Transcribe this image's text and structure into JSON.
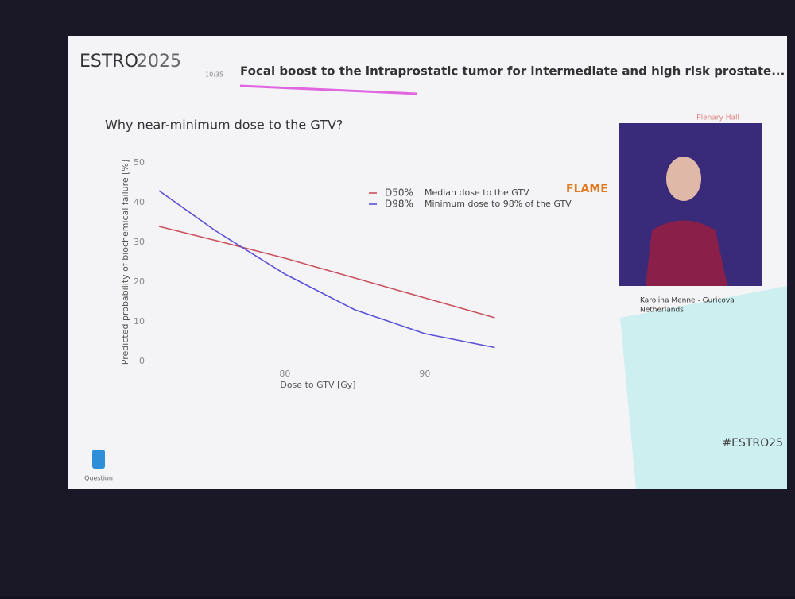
{
  "slide": {
    "logo": "ESTRO",
    "logo_year": "2025",
    "time": "10:35",
    "title": "Focal boost to the intraprostatic tumor for intermediate and high risk prostate...",
    "room": "Plenary Hall",
    "heading": "Why near-minimum dose to the GTV?",
    "study_logo": "FLAME",
    "speaker": "Karolina Menne - Guricova",
    "country": "Netherlands",
    "hashtag": "#ESTRO25",
    "question": "Question"
  },
  "chart_data": {
    "type": "line",
    "x_label": "Dose to GTV [Gy]",
    "y_label": "Predicted probability of biochemical failure [%]",
    "x": [
      71,
      75,
      80,
      85,
      90,
      95
    ],
    "series": [
      {
        "name": "D50%",
        "description": "Median dose to the GTV",
        "color": "#c9505c",
        "values": [
          34,
          30.5,
          26,
          21,
          16,
          11
        ]
      },
      {
        "name": "D98%",
        "description": "Minimum dose to 98% of the GTV",
        "color": "#5b4fd6",
        "values": [
          43,
          33,
          22,
          13,
          7,
          3.5
        ]
      }
    ],
    "xlim": [
      71,
      96
    ],
    "xticks": [
      80,
      90
    ],
    "ylim": [
      0,
      50
    ],
    "yticks": [
      0,
      10,
      20,
      30,
      40,
      50
    ],
    "grid": false
  }
}
